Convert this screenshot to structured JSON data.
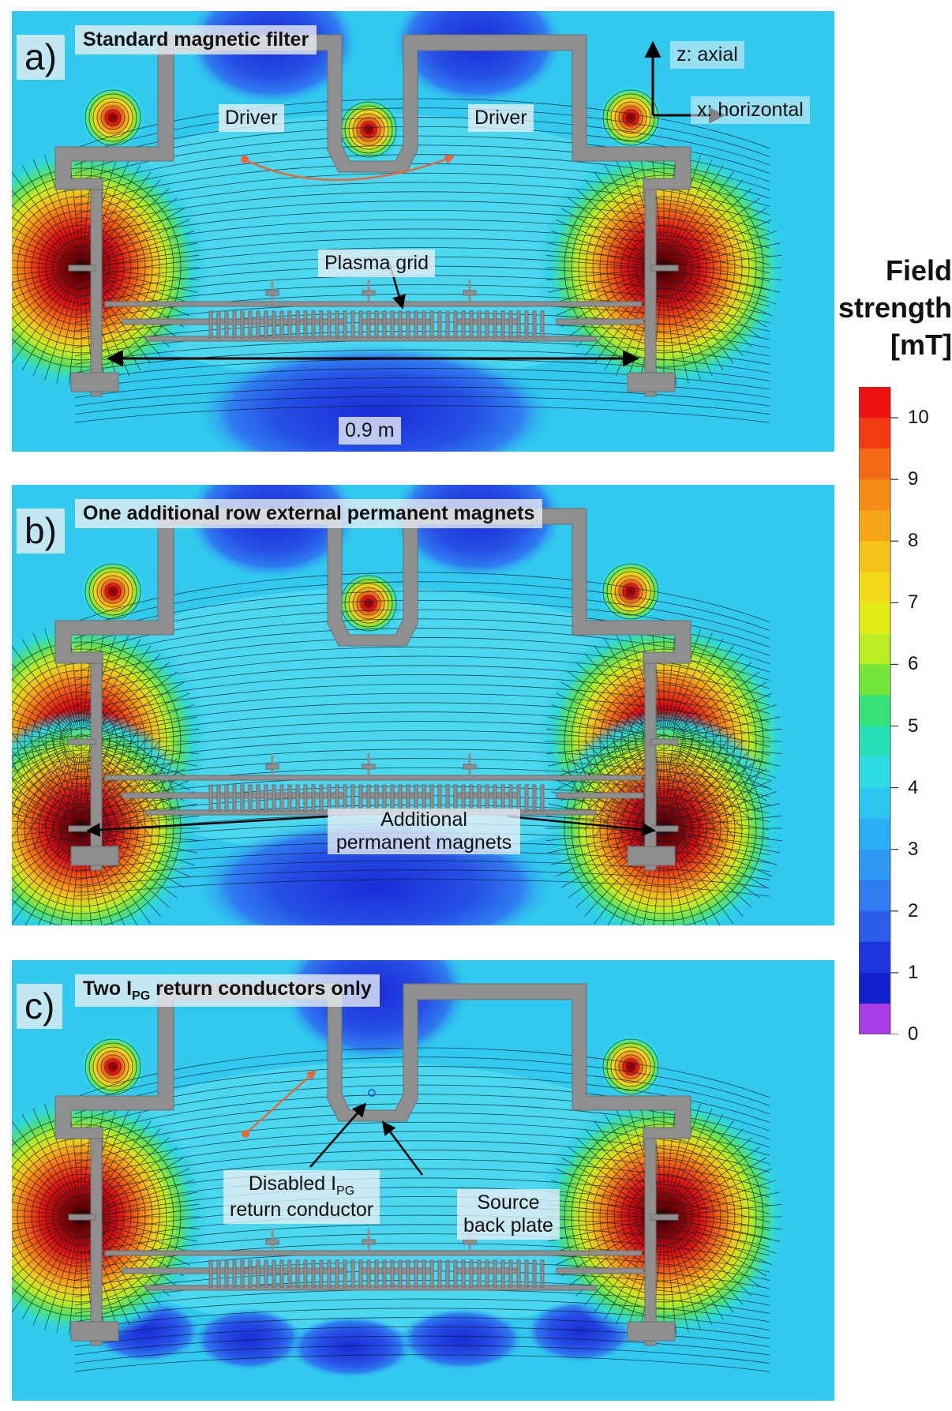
{
  "panels": [
    {
      "id": "a",
      "label": "a)",
      "title": "Standard magnetic filter",
      "variant": "standard",
      "annotations": {
        "driver_left": "Driver",
        "driver_right": "Driver",
        "plasma_grid": "Plasma grid",
        "width": "0.9 m"
      }
    },
    {
      "id": "b",
      "label": "b)",
      "title": "One additional row external permanent magnets",
      "variant": "additional",
      "annotations": {
        "magnets_line1": "Additional",
        "magnets_line2": "permanent magnets"
      }
    },
    {
      "id": "c",
      "label": "c)",
      "title_main": "Two I",
      "title_sub": "PG",
      "title_rest": " return conductors only",
      "variant": "two",
      "annotations": {
        "disabled_line1_main": "Disabled I",
        "disabled_line1_sub": "PG",
        "disabled_line2": "return conductor",
        "backplate_line1": "Source",
        "backplate_line2": "back plate"
      }
    }
  ],
  "axes": {
    "z_label": "z: axial",
    "x_label": "x: horizontal"
  },
  "colorbar": {
    "title_line1": "Field",
    "title_line2": "strength",
    "title_line3": "[mT]",
    "ticks": [
      "10",
      "9",
      "8",
      "7",
      "6",
      "5",
      "4",
      "3",
      "2",
      "1",
      "0"
    ],
    "bands_top_to_bottom": [
      "#ee1111",
      "#f23d12",
      "#f56a14",
      "#f58c18",
      "#f6a418",
      "#f5c21a",
      "#f2da1a",
      "#e4ec18",
      "#b8ee22",
      "#74e63a",
      "#38e27a",
      "#28e0b8",
      "#30dce4",
      "#2cc6ee",
      "#2ab0f2",
      "#2f98f4",
      "#2f7cf0",
      "#2b5cea",
      "#1e34dc",
      "#1222cc",
      "#a83ce6"
    ]
  },
  "colors": {
    "wall_gray": "#8f8f8f",
    "field_base": "#31c9ee",
    "low_field": "#2a49e0",
    "arrow_orange": "#e8663a"
  }
}
